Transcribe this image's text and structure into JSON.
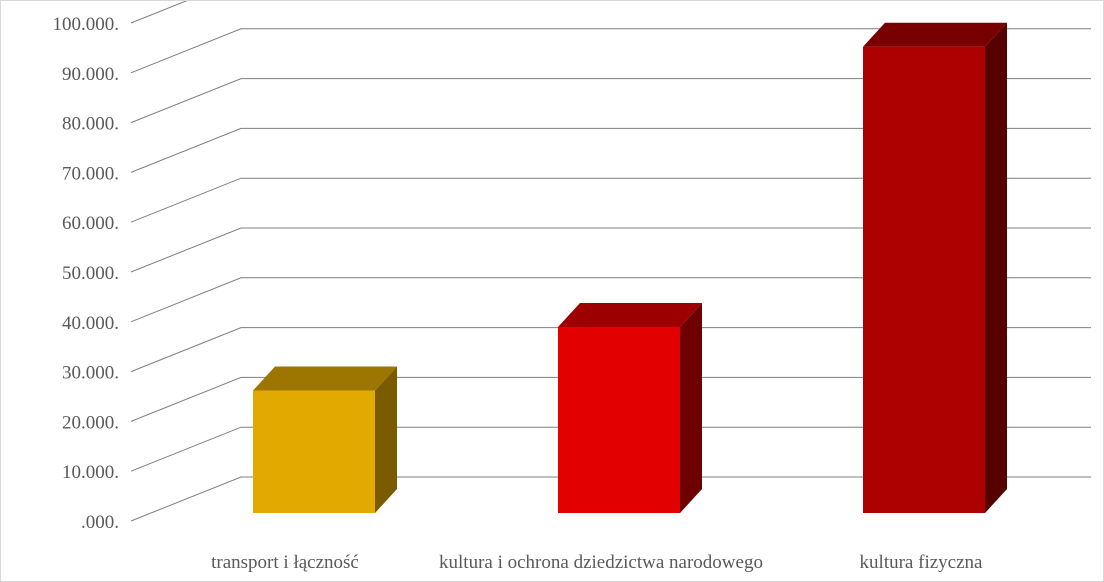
{
  "chart_data": {
    "type": "bar",
    "style": "3d-column",
    "title": "",
    "xlabel": "",
    "ylabel": "",
    "categories": [
      "transport i łączność",
      "kultura i ochrona dziedzictwa narodowego",
      "kultura fizyczna"
    ],
    "values": [
      26000,
      39500,
      99000
    ],
    "ylim": [
      0,
      100000
    ],
    "yticks": [
      0,
      10000,
      20000,
      30000,
      40000,
      50000,
      60000,
      70000,
      80000,
      90000,
      100000
    ],
    "ytick_labels": [
      ".000.",
      "10.000.",
      "20.000.",
      "30.000.",
      "40.000.",
      "50.000.",
      "60.000.",
      "70.000.",
      "80.000.",
      "90.000.",
      "100.000."
    ],
    "grid": true,
    "legend": "none",
    "bar_colors": [
      {
        "front": "#e2a900",
        "top": "#9c7600",
        "side": "#7a5b00"
      },
      {
        "front": "#e20000",
        "top": "#9c0000",
        "side": "#6e0000"
      },
      {
        "front": "#ad0000",
        "top": "#780000",
        "side": "#560000"
      }
    ],
    "grid_color": "#7f7f7f",
    "label_color": "#595959"
  }
}
